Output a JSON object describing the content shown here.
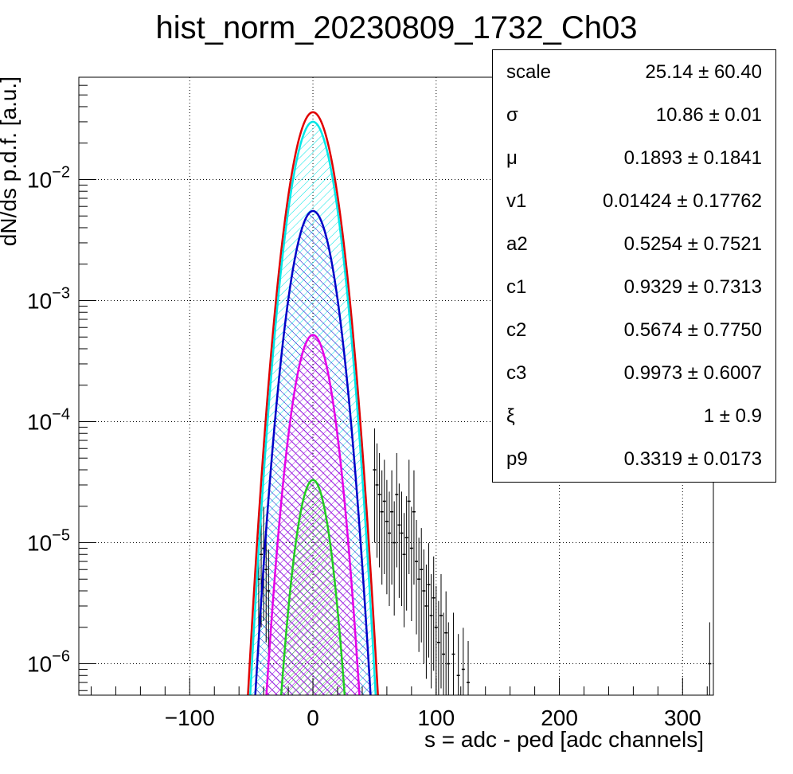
{
  "chart_data": {
    "type": "line",
    "title": "hist_norm_20230809_1732_Ch03",
    "xlabel": "s = adc - ped [adc channels]",
    "ylabel": "dN/ds p.d.f. [a.u.]",
    "xlim": [
      -190,
      325
    ],
    "ylim": [
      5.5e-07,
      0.07
    ],
    "yscale": "log",
    "grid": true,
    "x_ticks": [
      -100,
      0,
      100,
      200,
      300
    ],
    "x_tick_labels": [
      "−100",
      "0",
      "100",
      "200",
      "300"
    ],
    "y_ticks": [
      1e-06,
      1e-05,
      0.0001,
      0.001,
      0.01
    ],
    "y_tick_bases": [
      "10",
      "10",
      "10",
      "10",
      "10"
    ],
    "y_tick_exponents": [
      "−6",
      "−5",
      "−4",
      "−3",
      "−2"
    ],
    "series": [
      {
        "color": "#e00000",
        "peak_x": 0,
        "peak": 0.036,
        "sigma": 11.2,
        "hatch": "none"
      },
      {
        "color": "#00e6e6",
        "peak_x": 0,
        "peak": 0.03,
        "sigma": 10.9,
        "hatch": "diagonal"
      },
      {
        "color": "#0000c8",
        "peak_x": 0,
        "peak": 0.0055,
        "sigma": 10.9,
        "hatch": "diagonal"
      },
      {
        "color": "#e600e6",
        "peak_x": 0,
        "peak": 0.00052,
        "sigma": 10.2,
        "hatch": "cross"
      },
      {
        "color": "#22cc22",
        "peak_x": 0,
        "peak": 3.3e-05,
        "sigma": 9.0,
        "hatch": "diagonal"
      }
    ],
    "data_points": [
      [
        -44,
        5e-06
      ],
      [
        -42,
        8e-06
      ],
      [
        -40,
        9e-06
      ],
      [
        -38,
        6e-06
      ],
      [
        -36,
        4e-06
      ],
      [
        50,
        4e-05
      ],
      [
        52,
        3e-05
      ],
      [
        54,
        2.5e-05
      ],
      [
        56,
        1.8e-05
      ],
      [
        58,
        2.2e-05
      ],
      [
        60,
        1.5e-05
      ],
      [
        62,
        1.2e-05
      ],
      [
        64,
        1.8e-05
      ],
      [
        66,
        1e-05
      ],
      [
        68,
        2.5e-05
      ],
      [
        70,
        1.4e-05
      ],
      [
        72,
        1.2e-05
      ],
      [
        74,
        8e-06
      ],
      [
        76,
        1.1e-05
      ],
      [
        78,
        2.2e-05
      ],
      [
        80,
        9e-06
      ],
      [
        82,
        1.8e-05
      ],
      [
        84,
        7e-06
      ],
      [
        86,
        5e-06
      ],
      [
        88,
        6e-06
      ],
      [
        90,
        4e-06
      ],
      [
        92,
        3e-06
      ],
      [
        94,
        4.5e-06
      ],
      [
        96,
        2.5e-06
      ],
      [
        98,
        3.5e-06
      ],
      [
        100,
        2e-06
      ],
      [
        102,
        1.5e-06
      ],
      [
        104,
        2.5e-06
      ],
      [
        106,
        1.2e-06
      ],
      [
        108,
        1.8e-06
      ],
      [
        110,
        1e-06
      ],
      [
        114,
        1.2e-06
      ],
      [
        118,
        8e-07
      ],
      [
        122,
        9e-07
      ],
      [
        126,
        7e-07
      ],
      [
        322,
        1e-06
      ]
    ]
  },
  "stats": [
    {
      "name": "scale",
      "value": "25.14 ± 60.40"
    },
    {
      "name": "σ",
      "value": "10.86 ± 0.01"
    },
    {
      "name": "μ",
      "value": "0.1893 ± 0.1841"
    },
    {
      "name": "v1",
      "value": "0.01424 ± 0.17762"
    },
    {
      "name": "a2",
      "value": "0.5254 ± 0.7521"
    },
    {
      "name": "c1",
      "value": "0.9329 ± 0.7313"
    },
    {
      "name": "c2",
      "value": "0.5674 ± 0.7750"
    },
    {
      "name": "c3",
      "value": "0.9973 ± 0.6007"
    },
    {
      "name": "ξ",
      "value": "1 ± 0.9"
    },
    {
      "name": "p9",
      "value": "0.3319 ± 0.0173"
    }
  ]
}
